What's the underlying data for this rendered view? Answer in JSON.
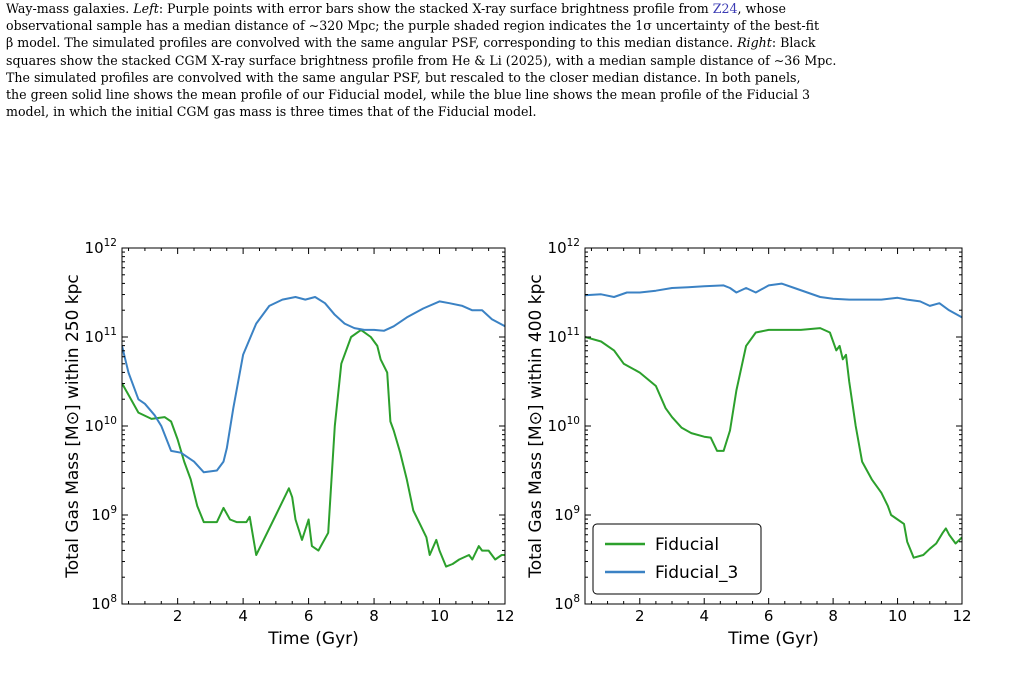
{
  "caption": {
    "line1_a": "Way-mass galaxies. ",
    "left_label": "Left",
    "line1_b": ": Purple points with error bars show the stacked X-ray surface brightness profile from ",
    "ref1": "Z24",
    "line1_c": ", whose",
    "line2": "observational sample has a median distance of ∼320 Mpc; the purple shaded region indicates the 1σ uncertainty of the best-fit",
    "line3_a": "β model. The simulated profiles are convolved with the same angular PSF, corresponding to this median distance. ",
    "right_label": "Right",
    "line3_b": ": Black",
    "line4": "squares show the stacked CGM X-ray surface brightness profile from He & Li (2025), with a median sample distance of ∼36 Mpc.",
    "line5": "The simulated profiles are convolved with the same angular PSF, but rescaled to the closer median distance. In both panels,",
    "line6": "the green solid line shows the mean profile of our Fiducial model, while the blue line shows the mean profile of the Fiducial 3",
    "line7": "model, in which the initial CGM gas mass is three times that of the Fiducial model."
  },
  "colors": {
    "fiducial": "#2ca02c",
    "fiducial_3": "#3b82c4"
  },
  "chart_data": [
    {
      "type": "line",
      "xlabel": "Time (Gyr)",
      "ylabel": "Total Gas Mass [M⊙] within 250 kpc",
      "xlim": [
        0.3,
        12
      ],
      "ylim_log10": [
        8,
        12
      ],
      "yscale": "log",
      "xticks": [
        2,
        4,
        6,
        8,
        10,
        12
      ],
      "ytick_exponents": [
        8,
        9,
        10,
        11,
        12
      ],
      "series": [
        {
          "name": "Fiducial",
          "color_key": "fiducial",
          "points": [
            [
              0.3,
              10.48
            ],
            [
              0.5,
              10.35
            ],
            [
              0.8,
              10.15
            ],
            [
              1.2,
              10.08
            ],
            [
              1.6,
              10.1
            ],
            [
              1.8,
              10.05
            ],
            [
              2.0,
              9.85
            ],
            [
              2.2,
              9.6
            ],
            [
              2.4,
              9.4
            ],
            [
              2.6,
              9.1
            ],
            [
              2.8,
              8.92
            ],
            [
              3.2,
              8.92
            ],
            [
              3.4,
              9.08
            ],
            [
              3.6,
              8.95
            ],
            [
              3.8,
              8.92
            ],
            [
              4.1,
              8.92
            ],
            [
              4.2,
              8.98
            ],
            [
              4.4,
              8.55
            ],
            [
              4.6,
              8.7
            ],
            [
              5.0,
              9.0
            ],
            [
              5.4,
              9.3
            ],
            [
              5.5,
              9.2
            ],
            [
              5.6,
              8.95
            ],
            [
              5.8,
              8.72
            ],
            [
              6.0,
              8.95
            ],
            [
              6.1,
              8.65
            ],
            [
              6.3,
              8.6
            ],
            [
              6.6,
              8.8
            ],
            [
              6.8,
              10.0
            ],
            [
              7.0,
              10.7
            ],
            [
              7.3,
              11.0
            ],
            [
              7.6,
              11.08
            ],
            [
              7.9,
              11.0
            ],
            [
              8.1,
              10.9
            ],
            [
              8.2,
              10.75
            ],
            [
              8.4,
              10.6
            ],
            [
              8.5,
              10.05
            ],
            [
              8.6,
              9.95
            ],
            [
              8.8,
              9.7
            ],
            [
              9.0,
              9.4
            ],
            [
              9.2,
              9.05
            ],
            [
              9.4,
              8.9
            ],
            [
              9.6,
              8.75
            ],
            [
              9.7,
              8.55
            ],
            [
              9.9,
              8.72
            ],
            [
              10.0,
              8.6
            ],
            [
              10.2,
              8.42
            ],
            [
              10.4,
              8.45
            ],
            [
              10.6,
              8.5
            ],
            [
              10.9,
              8.55
            ],
            [
              11.0,
              8.5
            ],
            [
              11.2,
              8.65
            ],
            [
              11.3,
              8.6
            ],
            [
              11.5,
              8.6
            ],
            [
              11.7,
              8.5
            ],
            [
              11.9,
              8.55
            ],
            [
              12.0,
              8.55
            ]
          ]
        },
        {
          "name": "Fiducial_3",
          "color_key": "fiducial_3",
          "points": [
            [
              0.3,
              10.9
            ],
            [
              0.5,
              10.6
            ],
            [
              0.8,
              10.3
            ],
            [
              1.0,
              10.25
            ],
            [
              1.3,
              10.12
            ],
            [
              1.5,
              10.0
            ],
            [
              1.8,
              9.72
            ],
            [
              2.1,
              9.7
            ],
            [
              2.5,
              9.6
            ],
            [
              2.8,
              9.48
            ],
            [
              3.2,
              9.5
            ],
            [
              3.4,
              9.6
            ],
            [
              3.5,
              9.75
            ],
            [
              3.7,
              10.2
            ],
            [
              4.0,
              10.8
            ],
            [
              4.4,
              11.15
            ],
            [
              4.8,
              11.35
            ],
            [
              5.2,
              11.42
            ],
            [
              5.6,
              11.45
            ],
            [
              5.9,
              11.42
            ],
            [
              6.2,
              11.45
            ],
            [
              6.5,
              11.38
            ],
            [
              6.8,
              11.25
            ],
            [
              7.1,
              11.15
            ],
            [
              7.4,
              11.1
            ],
            [
              7.7,
              11.08
            ],
            [
              8.0,
              11.08
            ],
            [
              8.3,
              11.07
            ],
            [
              8.6,
              11.12
            ],
            [
              9.0,
              11.22
            ],
            [
              9.5,
              11.32
            ],
            [
              10.0,
              11.4
            ],
            [
              10.3,
              11.38
            ],
            [
              10.7,
              11.35
            ],
            [
              11.0,
              11.3
            ],
            [
              11.3,
              11.3
            ],
            [
              11.6,
              11.2
            ],
            [
              12.0,
              11.12
            ]
          ]
        }
      ]
    },
    {
      "type": "line",
      "xlabel": "Time (Gyr)",
      "ylabel": "Total Gas Mass [M⊙] within 400 kpc",
      "xlim": [
        0.3,
        12
      ],
      "ylim_log10": [
        8,
        12
      ],
      "yscale": "log",
      "xticks": [
        2,
        4,
        6,
        8,
        10,
        12
      ],
      "ytick_exponents": [
        8,
        9,
        10,
        11,
        12
      ],
      "legend": {
        "placement": "lower-left",
        "entries": [
          "Fiducial",
          "Fiducial_3"
        ]
      },
      "series": [
        {
          "name": "Fiducial",
          "color_key": "fiducial",
          "points": [
            [
              0.3,
              11.0
            ],
            [
              0.8,
              10.95
            ],
            [
              1.2,
              10.85
            ],
            [
              1.5,
              10.7
            ],
            [
              2.0,
              10.6
            ],
            [
              2.5,
              10.45
            ],
            [
              2.8,
              10.2
            ],
            [
              3.0,
              10.1
            ],
            [
              3.3,
              9.98
            ],
            [
              3.6,
              9.92
            ],
            [
              4.0,
              9.88
            ],
            [
              4.2,
              9.87
            ],
            [
              4.4,
              9.72
            ],
            [
              4.6,
              9.72
            ],
            [
              4.8,
              9.95
            ],
            [
              5.0,
              10.4
            ],
            [
              5.3,
              10.9
            ],
            [
              5.6,
              11.05
            ],
            [
              6.0,
              11.08
            ],
            [
              7.0,
              11.08
            ],
            [
              7.6,
              11.1
            ],
            [
              7.9,
              11.05
            ],
            [
              8.1,
              10.85
            ],
            [
              8.2,
              10.9
            ],
            [
              8.3,
              10.75
            ],
            [
              8.4,
              10.8
            ],
            [
              8.5,
              10.5
            ],
            [
              8.7,
              10.0
            ],
            [
              8.9,
              9.6
            ],
            [
              9.2,
              9.4
            ],
            [
              9.5,
              9.25
            ],
            [
              9.7,
              9.1
            ],
            [
              9.8,
              9.0
            ],
            [
              10.0,
              8.95
            ],
            [
              10.2,
              8.9
            ],
            [
              10.3,
              8.7
            ],
            [
              10.5,
              8.52
            ],
            [
              10.8,
              8.55
            ],
            [
              11.0,
              8.62
            ],
            [
              11.2,
              8.68
            ],
            [
              11.4,
              8.8
            ],
            [
              11.5,
              8.85
            ],
            [
              11.6,
              8.78
            ],
            [
              11.8,
              8.68
            ],
            [
              12.0,
              8.75
            ]
          ]
        },
        {
          "name": "Fiducial_3",
          "color_key": "fiducial_3",
          "points": [
            [
              0.3,
              11.47
            ],
            [
              0.8,
              11.48
            ],
            [
              1.2,
              11.45
            ],
            [
              1.6,
              11.5
            ],
            [
              2.0,
              11.5
            ],
            [
              2.5,
              11.52
            ],
            [
              3.0,
              11.55
            ],
            [
              3.5,
              11.56
            ],
            [
              4.0,
              11.57
            ],
            [
              4.6,
              11.58
            ],
            [
              4.8,
              11.55
            ],
            [
              5.0,
              11.5
            ],
            [
              5.3,
              11.55
            ],
            [
              5.6,
              11.5
            ],
            [
              6.0,
              11.58
            ],
            [
              6.4,
              11.6
            ],
            [
              6.8,
              11.55
            ],
            [
              7.2,
              11.5
            ],
            [
              7.6,
              11.45
            ],
            [
              8.0,
              11.43
            ],
            [
              8.5,
              11.42
            ],
            [
              9.0,
              11.42
            ],
            [
              9.5,
              11.42
            ],
            [
              10.0,
              11.44
            ],
            [
              10.3,
              11.42
            ],
            [
              10.7,
              11.4
            ],
            [
              11.0,
              11.35
            ],
            [
              11.3,
              11.38
            ],
            [
              11.6,
              11.3
            ],
            [
              12.0,
              11.22
            ]
          ]
        }
      ]
    }
  ]
}
